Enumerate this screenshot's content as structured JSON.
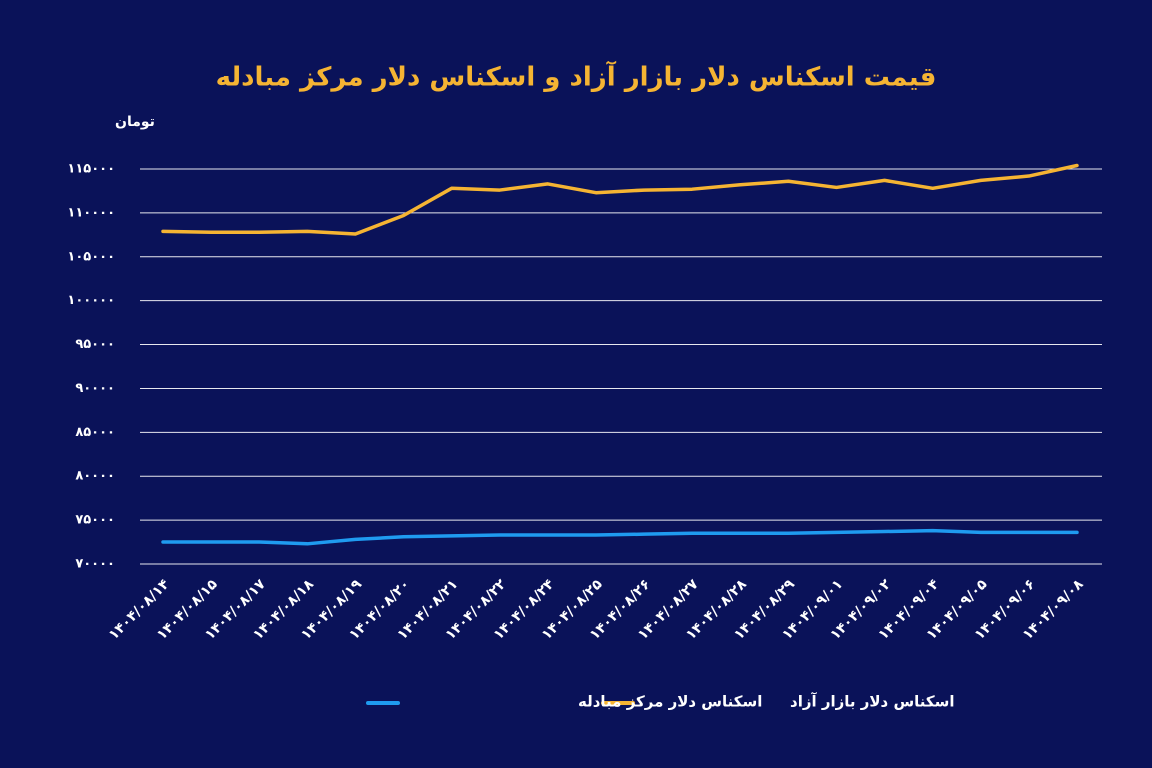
{
  "chart_data": {
    "type": "line",
    "title": "قیمت اسکناس دلار بازار آزاد و اسکناس دلار مرکز مبادله",
    "y_label": "تومان",
    "categories": [
      "۱۴۰۴/۰۸/۱۴",
      "۱۴۰۴/۰۸/۱۵",
      "۱۴۰۴/۰۸/۱۷",
      "۱۴۰۴/۰۸/۱۸",
      "۱۴۰۴/۰۸/۱۹",
      "۱۴۰۴/۰۸/۲۰",
      "۱۴۰۴/۰۸/۲۱",
      "۱۴۰۴/۰۸/۲۲",
      "۱۴۰۴/۰۸/۲۴",
      "۱۴۰۴/۰۸/۲۵",
      "۱۴۰۴/۰۸/۲۶",
      "۱۴۰۴/۰۸/۲۷",
      "۱۴۰۴/۰۸/۲۸",
      "۱۴۰۴/۰۸/۲۹",
      "۱۴۰۴/۰۹/۰۱",
      "۱۴۰۴/۰۹/۰۲",
      "۱۴۰۴/۰۹/۰۴",
      "۱۴۰۴/۰۹/۰۵",
      "۱۴۰۴/۰۹/۰۶",
      "۱۴۰۴/۰۹/۰۸"
    ],
    "series": [
      {
        "name": "اسکناس دلار بازار آزاد",
        "color": "#f5b433",
        "values": [
          107900,
          107800,
          107800,
          107900,
          107600,
          109700,
          112800,
          112600,
          113300,
          112300,
          112600,
          112700,
          113200,
          113600,
          112900,
          113700,
          112800,
          113700,
          114200,
          115400
        ]
      },
      {
        "name": "اسکناس دلار مرکز مبادله",
        "color": "#1f9bf0",
        "values": [
          72500,
          72500,
          72500,
          72300,
          72800,
          73100,
          73200,
          73300,
          73300,
          73300,
          73400,
          73500,
          73500,
          73500,
          73600,
          73700,
          73800,
          73600,
          73600,
          73600
        ]
      }
    ],
    "ylim": [
      70000,
      115000
    ],
    "yticks": [
      {
        "value": 70000,
        "label": "۷۰۰۰۰"
      },
      {
        "value": 75000,
        "label": "۷۵۰۰۰"
      },
      {
        "value": 80000,
        "label": "۸۰۰۰۰"
      },
      {
        "value": 85000,
        "label": "۸۵۰۰۰"
      },
      {
        "value": 90000,
        "label": "۹۰۰۰۰"
      },
      {
        "value": 95000,
        "label": "۹۵۰۰۰"
      },
      {
        "value": 100000,
        "label": "۱۰۰۰۰۰"
      },
      {
        "value": 105000,
        "label": "۱۰۵۰۰۰"
      },
      {
        "value": 110000,
        "label": "۱۱۰۰۰۰"
      },
      {
        "value": 115000,
        "label": "۱۱۵۰۰۰"
      }
    ],
    "grid": true
  }
}
